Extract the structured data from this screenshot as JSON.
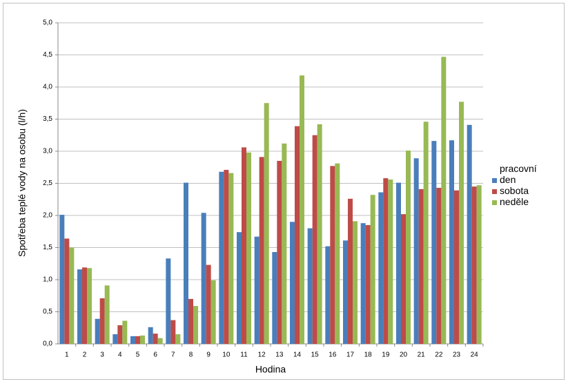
{
  "chart_data": {
    "type": "bar",
    "x_label": "Hodina",
    "y_label": "Spotřeba teplé vody na osobu (l/h)",
    "categories": [
      "1",
      "2",
      "3",
      "4",
      "5",
      "6",
      "7",
      "8",
      "9",
      "10",
      "11",
      "12",
      "13",
      "14",
      "15",
      "16",
      "17",
      "18",
      "19",
      "20",
      "21",
      "22",
      "23",
      "24"
    ],
    "series": [
      {
        "name": "pracovní den",
        "color": "#4a7ebb",
        "values": [
          2.01,
          1.16,
          0.39,
          0.15,
          0.12,
          0.26,
          1.33,
          2.51,
          2.04,
          2.68,
          1.74,
          1.67,
          1.43,
          1.9,
          1.8,
          1.52,
          1.61,
          1.88,
          2.36,
          2.51,
          2.89,
          3.16,
          3.17,
          3.41
        ]
      },
      {
        "name": "sobota",
        "color": "#be4b48",
        "values": [
          1.64,
          1.19,
          0.71,
          0.29,
          0.12,
          0.16,
          0.37,
          0.7,
          1.23,
          2.71,
          3.06,
          2.91,
          2.85,
          3.39,
          3.25,
          2.77,
          2.26,
          1.85,
          2.58,
          2.02,
          2.41,
          2.43,
          2.39,
          2.45
        ]
      },
      {
        "name": "neděle",
        "color": "#98b954",
        "values": [
          1.5,
          1.18,
          0.91,
          0.36,
          0.13,
          0.09,
          0.15,
          0.59,
          0.99,
          2.66,
          2.98,
          3.75,
          3.12,
          4.18,
          3.42,
          2.81,
          1.91,
          2.32,
          2.56,
          3.01,
          3.46,
          4.47,
          3.77,
          2.47
        ]
      }
    ],
    "ylim": [
      0,
      5
    ],
    "yticks": [
      {
        "value": 0,
        "label": "0,0"
      },
      {
        "value": 0.5,
        "label": "0,5"
      },
      {
        "value": 1,
        "label": "1,0"
      },
      {
        "value": 1.5,
        "label": "1,5"
      },
      {
        "value": 2,
        "label": "2,0"
      },
      {
        "value": 2.5,
        "label": "2,5"
      },
      {
        "value": 3,
        "label": "3,0"
      },
      {
        "value": 3.5,
        "label": "3,5"
      },
      {
        "value": 4,
        "label": "4,0"
      },
      {
        "value": 4.5,
        "label": "4,5"
      },
      {
        "value": 5,
        "label": "5,0"
      }
    ],
    "grid": true
  }
}
